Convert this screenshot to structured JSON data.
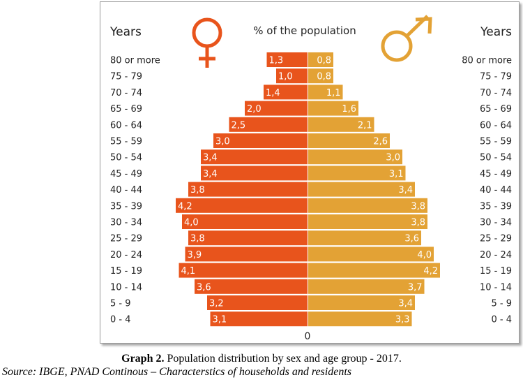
{
  "chart_data": {
    "type": "bar",
    "orientation": "horizontal-population-pyramid",
    "header_left": "Years",
    "header_center": "% of the population",
    "header_right": "Years",
    "zero_label": "0",
    "categories": [
      "80 or more",
      "75 - 79",
      "70 - 74",
      "65 - 69",
      "60 - 64",
      "55 - 59",
      "50 - 54",
      "45 - 49",
      "40 - 44",
      "35 - 39",
      "30 - 34",
      "25 - 29",
      "20 - 24",
      "15 - 19",
      "10 - 14",
      "5 - 9",
      "0 - 4"
    ],
    "series": [
      {
        "side": "left",
        "symbol": "female-symbol",
        "color": "#E8541C",
        "values": [
          1.3,
          1.0,
          1.4,
          2.0,
          2.5,
          3.0,
          3.4,
          3.4,
          3.8,
          4.2,
          4.0,
          3.8,
          3.9,
          4.1,
          3.6,
          3.2,
          3.1
        ],
        "value_labels": [
          "1,3",
          "1,0",
          "1,4",
          "2,0",
          "2,5",
          "3,0",
          "3,4",
          "3,4",
          "3,8",
          "4,2",
          "4,0",
          "3,8",
          "3,9",
          "4,1",
          "3,6",
          "3,2",
          "3,1"
        ]
      },
      {
        "side": "right",
        "symbol": "male-symbol",
        "color": "#E3A235",
        "values": [
          0.8,
          0.8,
          1.1,
          1.6,
          2.1,
          2.6,
          3.0,
          3.1,
          3.4,
          3.8,
          3.8,
          3.6,
          4.0,
          4.2,
          3.7,
          3.4,
          3.3
        ],
        "value_labels": [
          "0,8",
          "0,8",
          "1,1",
          "1,6",
          "2,1",
          "2,6",
          "3,0",
          "3,1",
          "3,4",
          "3,8",
          "3,8",
          "3,6",
          "4,0",
          "4,2",
          "3,7",
          "3,4",
          "3,3"
        ]
      }
    ],
    "xlim": [
      0,
      4.2
    ],
    "grid": false
  },
  "caption": {
    "label": "Graph 2.",
    "text": " Population distribution by sex and age group - 2017."
  },
  "source": "Source: IBGE, PNAD Continous – Characterstics of households and residents"
}
